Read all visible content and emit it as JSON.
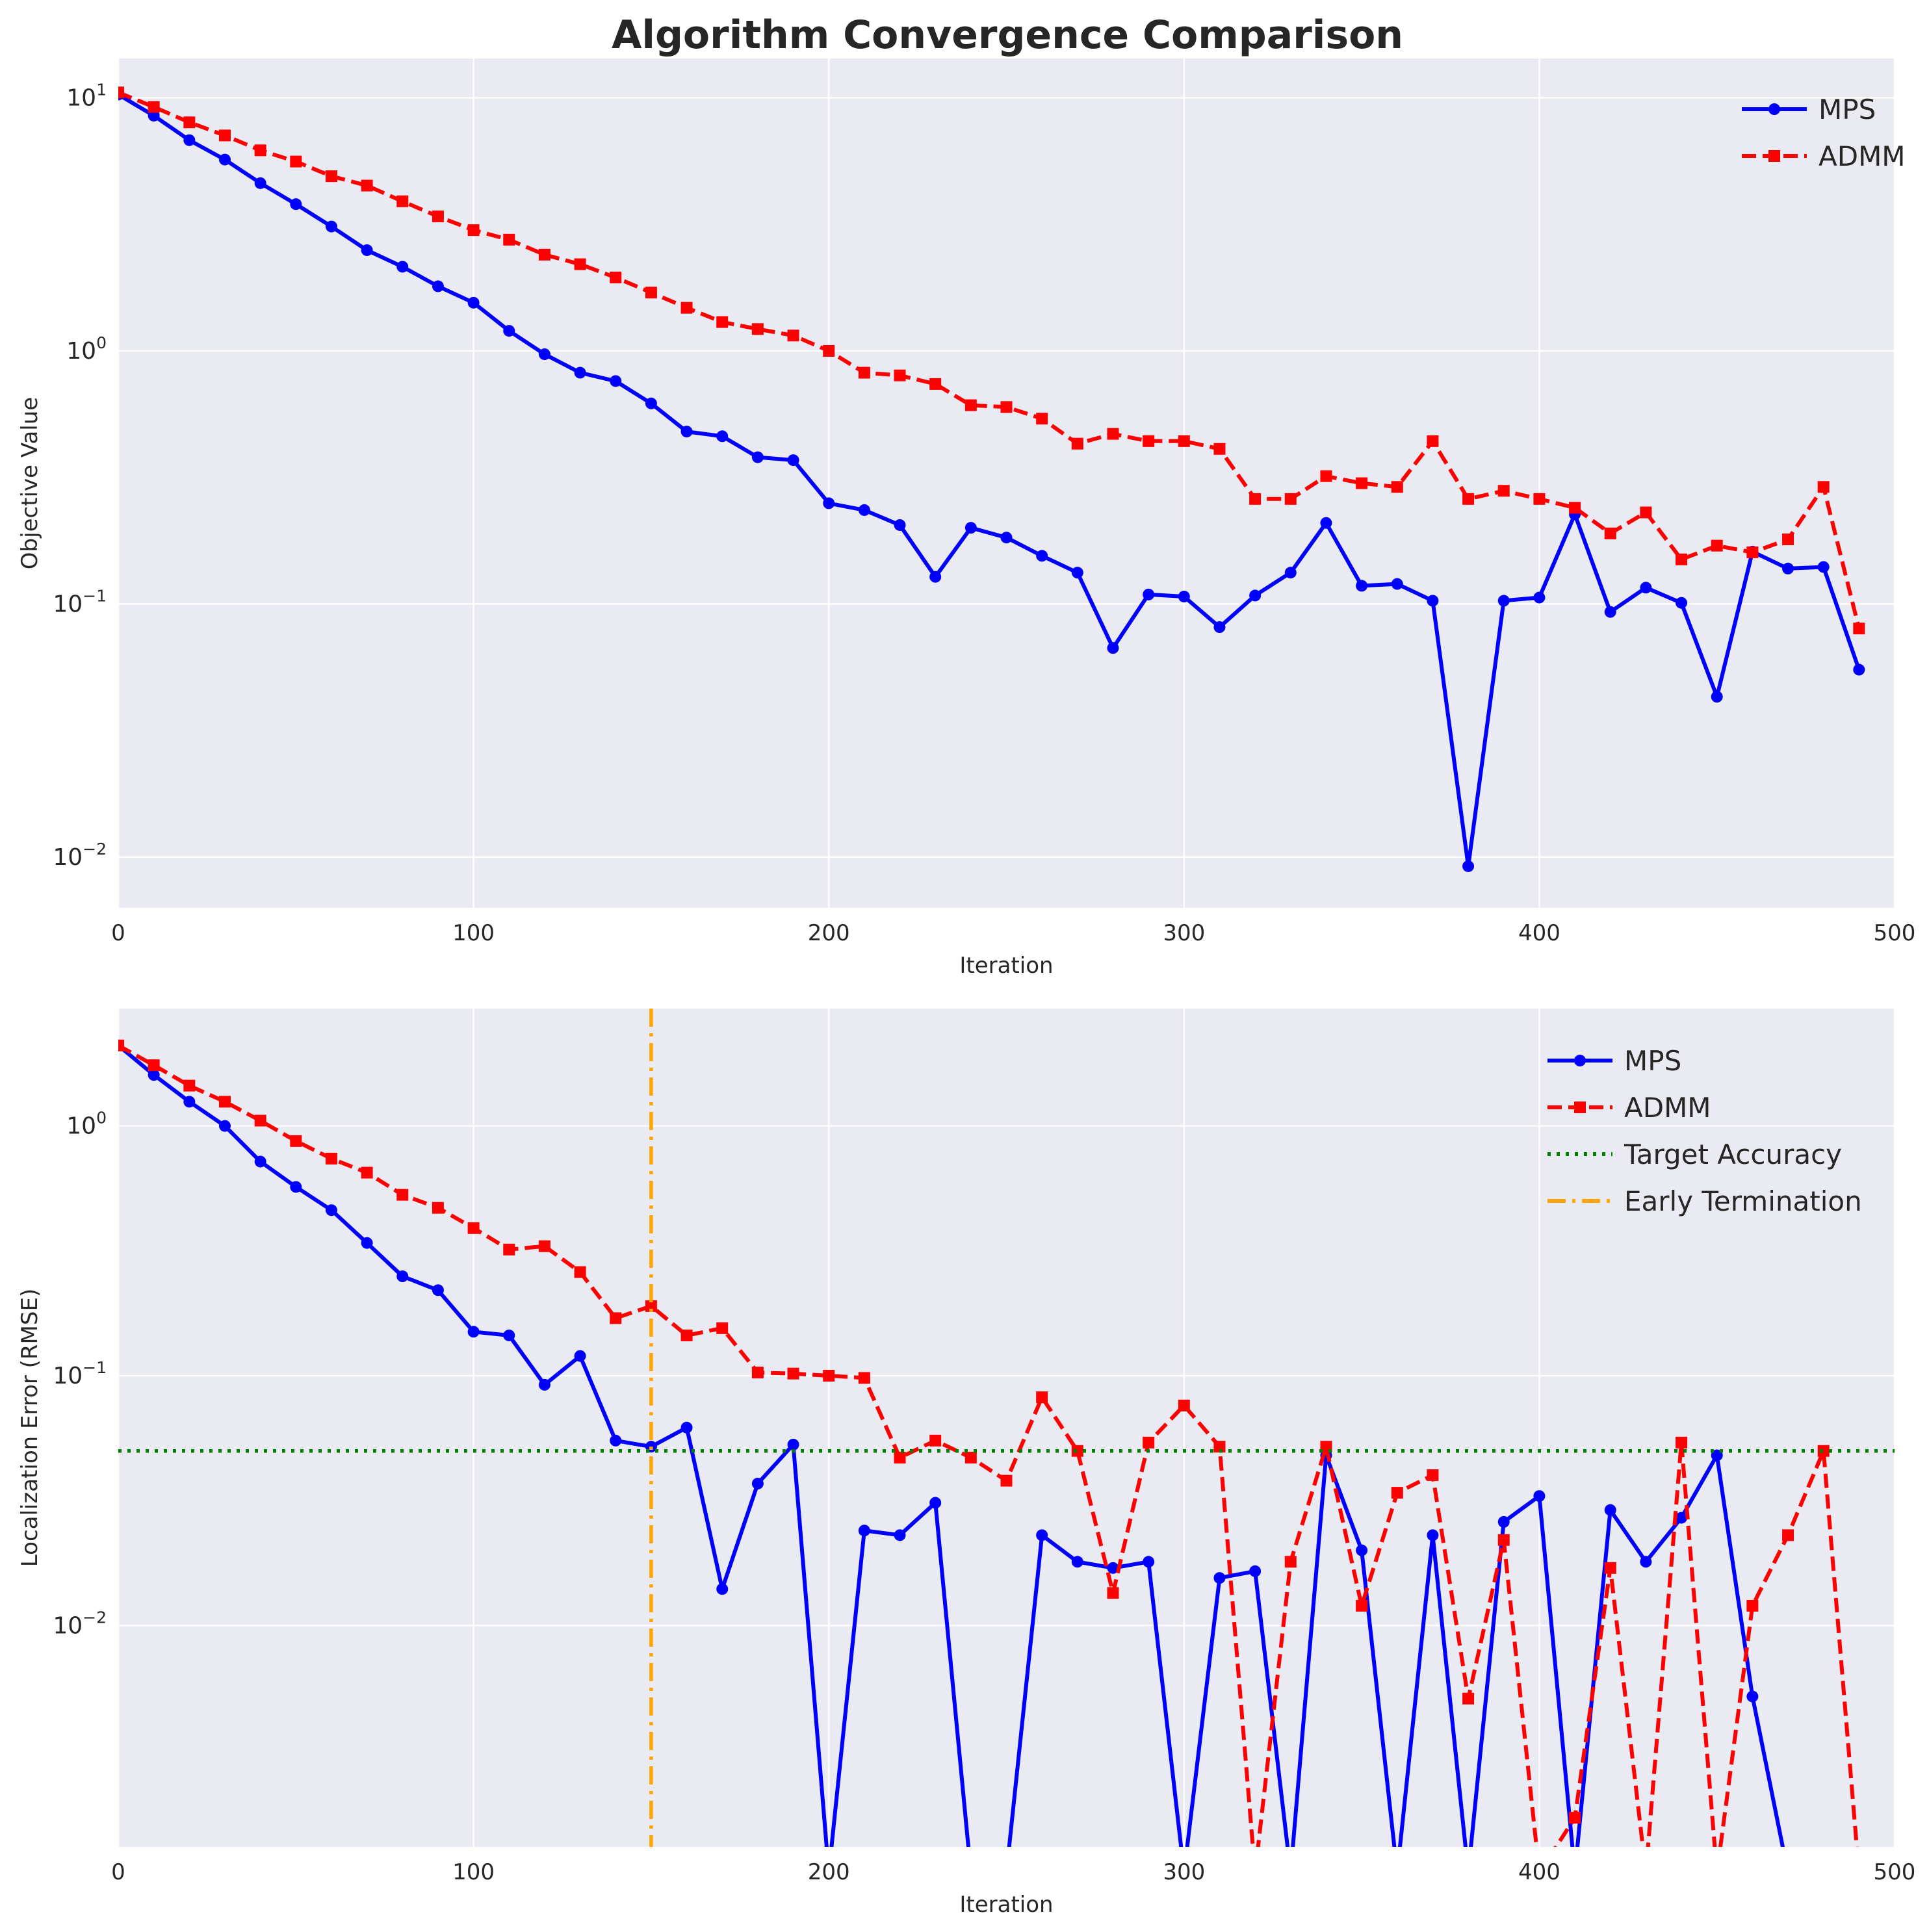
{
  "figure": {
    "title": "Algorithm Convergence Comparison"
  },
  "colors": {
    "panel_bg": "#eaeaf2",
    "grid": "#ffffff",
    "mps": "#0000ff",
    "admm": "#ff0000",
    "target": "#008000",
    "early": "#ffa500"
  },
  "chart_data": [
    {
      "type": "line",
      "title": "Algorithm Convergence Comparison",
      "xlabel": "Iteration",
      "ylabel": "Objective Value",
      "xlim": [
        0,
        500
      ],
      "ylim": [
        0.0063,
        14.3
      ],
      "yscale": "log",
      "grid": true,
      "legend": "top-right",
      "xticks": [
        0,
        100,
        200,
        300,
        400,
        500
      ],
      "xtick_labels": [
        "0",
        "100",
        "200",
        "300",
        "400",
        "500"
      ],
      "yticks": [
        0.01,
        0.1,
        1,
        10
      ],
      "ytick_labels": [
        {
          "base": "10",
          "exp": "−2"
        },
        {
          "base": "10",
          "exp": "−1"
        },
        {
          "base": "10",
          "exp": "0"
        },
        {
          "base": "10",
          "exp": "1"
        }
      ],
      "x": [
        0,
        10,
        20,
        30,
        40,
        50,
        60,
        70,
        80,
        90,
        100,
        110,
        120,
        130,
        140,
        150,
        160,
        170,
        180,
        190,
        200,
        210,
        220,
        230,
        240,
        250,
        260,
        270,
        280,
        290,
        300,
        310,
        320,
        330,
        340,
        350,
        360,
        370,
        380,
        390,
        400,
        410,
        420,
        430,
        440,
        450,
        460,
        470,
        480,
        490
      ],
      "series": [
        {
          "name": "MPS",
          "style": "solid-circle",
          "values": [
            10.3,
            8.5,
            6.8,
            5.7,
            4.6,
            3.8,
            3.1,
            2.5,
            2.15,
            1.8,
            1.55,
            1.2,
            0.97,
            0.82,
            0.76,
            0.62,
            0.48,
            0.46,
            0.38,
            0.37,
            0.25,
            0.235,
            0.205,
            0.128,
            0.2,
            0.183,
            0.155,
            0.133,
            0.067,
            0.109,
            0.107,
            0.081,
            0.108,
            0.133,
            0.209,
            0.118,
            0.12,
            0.103,
            0.0092,
            0.103,
            0.106,
            0.226,
            0.093,
            0.116,
            0.101,
            0.043,
            0.161,
            0.138,
            0.14,
            0.055
          ]
        },
        {
          "name": "ADMM",
          "style": "dashed-square",
          "values": [
            10.5,
            9.2,
            8.0,
            7.1,
            6.2,
            5.6,
            4.9,
            4.5,
            3.9,
            3.4,
            3.0,
            2.75,
            2.4,
            2.2,
            1.95,
            1.7,
            1.48,
            1.3,
            1.22,
            1.15,
            1.0,
            0.82,
            0.8,
            0.74,
            0.61,
            0.6,
            0.54,
            0.43,
            0.47,
            0.44,
            0.44,
            0.41,
            0.26,
            0.26,
            0.32,
            0.3,
            0.29,
            0.44,
            0.26,
            0.28,
            0.26,
            0.24,
            0.19,
            0.23,
            0.15,
            0.17,
            0.16,
            0.18,
            0.29,
            0.08
          ]
        }
      ]
    },
    {
      "type": "line",
      "xlabel": "Iteration",
      "ylabel": "Localization Error (RMSE)",
      "xlim": [
        0,
        500
      ],
      "ylim": [
        0.0013,
        2.95
      ],
      "yscale": "log",
      "grid": true,
      "legend": "top-right",
      "xticks": [
        0,
        100,
        200,
        300,
        400,
        500
      ],
      "xtick_labels": [
        "0",
        "100",
        "200",
        "300",
        "400",
        "500"
      ],
      "yticks": [
        0.01,
        0.1,
        1
      ],
      "ytick_labels": [
        {
          "base": "10",
          "exp": "−2"
        },
        {
          "base": "10",
          "exp": "−1"
        },
        {
          "base": "10",
          "exp": "0"
        }
      ],
      "x": [
        0,
        10,
        20,
        30,
        40,
        50,
        60,
        70,
        80,
        90,
        100,
        110,
        120,
        130,
        140,
        150,
        160,
        170,
        180,
        190,
        200,
        210,
        220,
        230,
        240,
        250,
        260,
        270,
        280,
        290,
        300,
        310,
        320,
        330,
        340,
        350,
        360,
        370,
        380,
        390,
        400,
        410,
        420,
        430,
        440,
        450,
        460,
        470,
        480,
        490
      ],
      "series": [
        {
          "name": "MPS",
          "style": "solid-circle",
          "values": [
            2.1,
            1.6,
            1.25,
            1.0,
            0.72,
            0.57,
            0.46,
            0.34,
            0.25,
            0.22,
            0.15,
            0.145,
            0.092,
            0.12,
            0.055,
            0.052,
            0.062,
            0.014,
            0.037,
            0.053,
            null,
            0.024,
            0.023,
            0.031,
            null,
            null,
            0.023,
            0.018,
            0.017,
            0.018,
            null,
            0.0155,
            0.0165,
            null,
            0.048,
            0.02,
            null,
            0.023,
            null,
            0.026,
            0.033,
            null,
            0.029,
            0.018,
            0.027,
            0.048,
            0.0052,
            null,
            null,
            null
          ]
        },
        {
          "name": "ADMM",
          "style": "dashed-square",
          "values": [
            2.1,
            1.75,
            1.45,
            1.25,
            1.05,
            0.87,
            0.74,
            0.65,
            0.53,
            0.47,
            0.39,
            0.32,
            0.33,
            0.26,
            0.17,
            0.19,
            0.145,
            0.155,
            0.103,
            0.102,
            0.1,
            0.098,
            0.047,
            0.055,
            0.047,
            0.038,
            0.082,
            0.05,
            0.0135,
            0.054,
            0.076,
            0.052,
            null,
            0.018,
            0.052,
            0.012,
            0.034,
            0.04,
            0.0051,
            0.022,
            null,
            0.0017,
            0.017,
            null,
            0.054,
            null,
            0.012,
            0.023,
            0.05,
            null
          ]
        },
        {
          "name": "Target Accuracy",
          "style": "dotted-horizontal",
          "y": 0.05
        },
        {
          "name": "Early Termination",
          "style": "dashdot-vertical",
          "x": 150
        }
      ]
    }
  ]
}
